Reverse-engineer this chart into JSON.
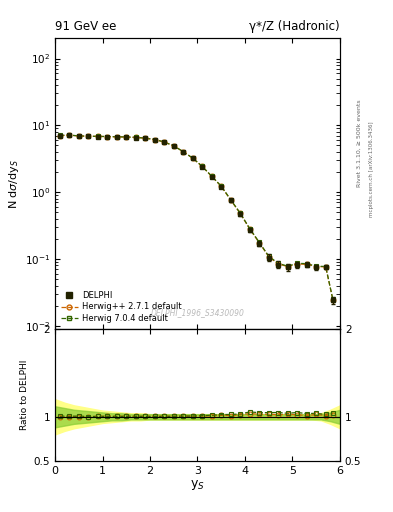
{
  "title_left": "91 GeV ee",
  "title_right": "γ*/Z (Hadronic)",
  "ylabel_main": "N dσ/dy$_S$",
  "ylabel_ratio": "Ratio to DELPHI",
  "xlabel": "y$_S$",
  "right_label_top": "Rivet 3.1.10, ≥ 500k events",
  "right_label_bot": "mcplots.cern.ch [arXiv:1306.3436]",
  "watermark": "DELPHI_1996_S3430090",
  "ylim_main": [
    0.009,
    200
  ],
  "ylim_ratio": [
    0.5,
    2.0
  ],
  "xlim": [
    0,
    6
  ],
  "data_x": [
    0.1,
    0.3,
    0.5,
    0.7,
    0.9,
    1.1,
    1.3,
    1.5,
    1.7,
    1.9,
    2.1,
    2.3,
    2.5,
    2.7,
    2.9,
    3.1,
    3.3,
    3.5,
    3.7,
    3.9,
    4.1,
    4.3,
    4.5,
    4.7,
    4.9,
    5.1,
    5.3,
    5.5,
    5.7,
    5.85
  ],
  "data_y": [
    7.0,
    7.1,
    6.9,
    6.85,
    6.8,
    6.75,
    6.7,
    6.65,
    6.55,
    6.4,
    6.1,
    5.6,
    4.9,
    4.0,
    3.2,
    2.4,
    1.7,
    1.2,
    0.75,
    0.47,
    0.27,
    0.17,
    0.105,
    0.082,
    0.075,
    0.082,
    0.082,
    0.075,
    0.075,
    0.024
  ],
  "data_yerr": [
    0.3,
    0.25,
    0.22,
    0.2,
    0.18,
    0.17,
    0.16,
    0.15,
    0.14,
    0.13,
    0.12,
    0.11,
    0.1,
    0.09,
    0.08,
    0.07,
    0.06,
    0.05,
    0.04,
    0.03,
    0.02,
    0.015,
    0.012,
    0.01,
    0.009,
    0.008,
    0.007,
    0.006,
    0.005,
    0.003
  ],
  "herwig271_x": [
    0.1,
    0.3,
    0.5,
    0.7,
    0.9,
    1.1,
    1.3,
    1.5,
    1.7,
    1.9,
    2.1,
    2.3,
    2.5,
    2.7,
    2.9,
    3.1,
    3.3,
    3.5,
    3.7,
    3.9,
    4.1,
    4.3,
    4.5,
    4.7,
    4.9,
    5.1,
    5.3,
    5.5,
    5.7,
    5.85
  ],
  "herwig271_y": [
    7.02,
    7.12,
    6.92,
    6.87,
    6.83,
    6.79,
    6.73,
    6.69,
    6.59,
    6.43,
    6.13,
    5.63,
    4.93,
    4.03,
    3.22,
    2.42,
    1.72,
    1.22,
    0.76,
    0.48,
    0.28,
    0.175,
    0.108,
    0.084,
    0.077,
    0.084,
    0.083,
    0.077,
    0.076,
    0.0245
  ],
  "herwig704_x": [
    0.1,
    0.3,
    0.5,
    0.7,
    0.9,
    1.1,
    1.3,
    1.5,
    1.7,
    1.9,
    2.1,
    2.3,
    2.5,
    2.7,
    2.9,
    3.1,
    3.3,
    3.5,
    3.7,
    3.9,
    4.1,
    4.3,
    4.5,
    4.7,
    4.9,
    5.1,
    5.3,
    5.5,
    5.7,
    5.85
  ],
  "herwig704_y": [
    7.05,
    7.15,
    6.95,
    6.87,
    6.83,
    6.79,
    6.73,
    6.69,
    6.59,
    6.43,
    6.13,
    5.63,
    4.93,
    4.03,
    3.23,
    2.43,
    1.73,
    1.23,
    0.77,
    0.485,
    0.285,
    0.178,
    0.11,
    0.086,
    0.078,
    0.086,
    0.085,
    0.078,
    0.077,
    0.025
  ],
  "mc_band_yellow_x": [
    0.0,
    0.2,
    0.4,
    0.6,
    0.8,
    1.0,
    1.2,
    1.4,
    1.6,
    1.8,
    2.0,
    2.2,
    2.4,
    2.6,
    2.8,
    3.0,
    3.2,
    3.4,
    3.6,
    3.8,
    4.0,
    4.2,
    4.4,
    4.6,
    4.8,
    5.0,
    5.2,
    5.4,
    5.6,
    5.8,
    6.0
  ],
  "mc_band_yellow_lo": [
    0.8,
    0.84,
    0.87,
    0.89,
    0.91,
    0.93,
    0.94,
    0.95,
    0.96,
    0.96,
    0.97,
    0.97,
    0.97,
    0.97,
    0.97,
    0.97,
    0.97,
    0.97,
    0.97,
    0.97,
    0.97,
    0.97,
    0.97,
    0.97,
    0.97,
    0.97,
    0.97,
    0.97,
    0.96,
    0.92,
    0.87
  ],
  "mc_band_yellow_hi": [
    1.2,
    1.16,
    1.13,
    1.11,
    1.09,
    1.07,
    1.06,
    1.05,
    1.04,
    1.04,
    1.03,
    1.03,
    1.03,
    1.03,
    1.03,
    1.03,
    1.03,
    1.03,
    1.03,
    1.03,
    1.03,
    1.03,
    1.03,
    1.03,
    1.03,
    1.03,
    1.03,
    1.03,
    1.04,
    1.08,
    1.13
  ],
  "mc_band_green_x": [
    0.0,
    0.2,
    0.4,
    0.6,
    0.8,
    1.0,
    1.2,
    1.4,
    1.6,
    1.8,
    2.0,
    2.2,
    2.4,
    2.6,
    2.8,
    3.0,
    3.2,
    3.4,
    3.6,
    3.8,
    4.0,
    4.2,
    4.4,
    4.6,
    4.8,
    5.0,
    5.2,
    5.4,
    5.6,
    5.8,
    6.0
  ],
  "mc_band_green_lo": [
    0.88,
    0.9,
    0.92,
    0.93,
    0.94,
    0.95,
    0.96,
    0.96,
    0.97,
    0.97,
    0.97,
    0.97,
    0.97,
    0.97,
    0.97,
    0.97,
    0.97,
    0.97,
    0.97,
    0.97,
    0.97,
    0.97,
    0.97,
    0.97,
    0.97,
    0.97,
    0.97,
    0.97,
    0.97,
    0.95,
    0.92
  ],
  "mc_band_green_hi": [
    1.12,
    1.1,
    1.08,
    1.07,
    1.06,
    1.05,
    1.04,
    1.04,
    1.03,
    1.03,
    1.03,
    1.03,
    1.03,
    1.03,
    1.03,
    1.03,
    1.03,
    1.03,
    1.03,
    1.03,
    1.03,
    1.03,
    1.03,
    1.03,
    1.03,
    1.03,
    1.03,
    1.03,
    1.03,
    1.05,
    1.08
  ],
  "color_data": "#222200",
  "color_herwig271": "#cc6600",
  "color_herwig704": "#336600",
  "color_band_yellow": "#ffff88",
  "color_band_green": "#88cc33",
  "bg_color": "#ffffff"
}
